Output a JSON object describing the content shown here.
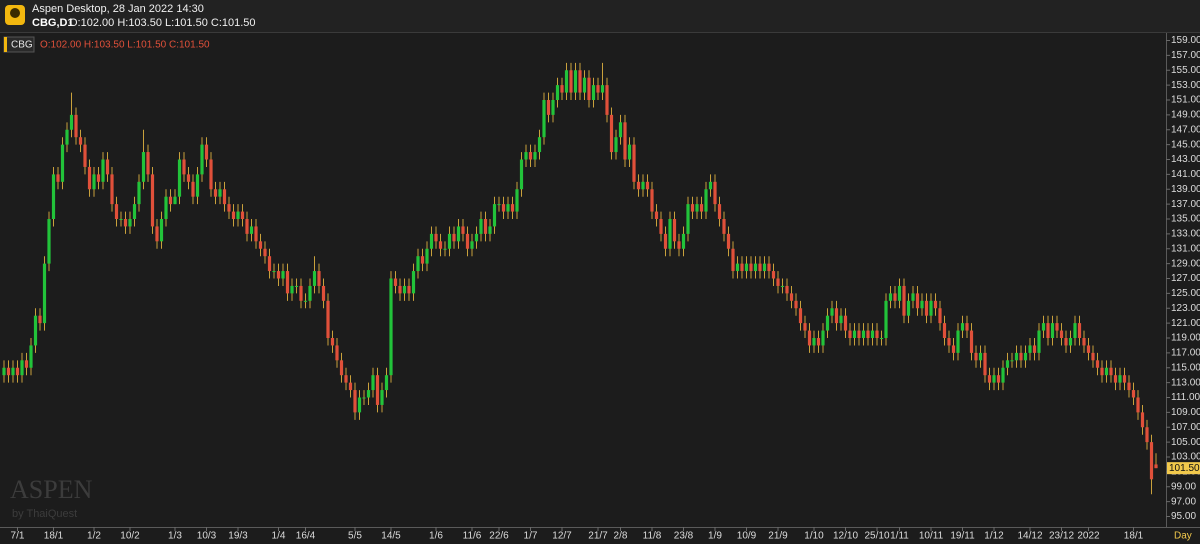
{
  "header": {
    "title": "Aspen Desktop, 28 Jan 2022 14:30",
    "symbol": "CBG,D1",
    "ohlc": "O:102.00 H:103.50 L:101.50 C:101.50"
  },
  "watermark": {
    "brand": "ASPEN",
    "byline": "by ThaiQuest"
  },
  "chart_data": {
    "type": "candlestick",
    "legend": {
      "symbol": "CBG",
      "ohlc": "O:102.00 H:103.50 L:101.50 C:101.50"
    },
    "x_axis_label": "Day",
    "up_color": "#22c33a",
    "down_color": "#e0503a",
    "wick_color": "#c9a13c",
    "grid": false,
    "current_price": {
      "value": 101.5,
      "label": "101.50"
    },
    "ylim": [
      95,
      159
    ],
    "yticks": [
      {
        "value": 95,
        "label": "95.00"
      },
      {
        "value": 97,
        "label": "97.00"
      },
      {
        "value": 99,
        "label": "99.00"
      },
      {
        "value": 101,
        "label": "101.00"
      },
      {
        "value": 103,
        "label": "103.00"
      },
      {
        "value": 105,
        "label": "105.00"
      },
      {
        "value": 107,
        "label": "107.00"
      },
      {
        "value": 109,
        "label": "109.00"
      },
      {
        "value": 111,
        "label": "111.00"
      },
      {
        "value": 113,
        "label": "113.00"
      },
      {
        "value": 115,
        "label": "115.00"
      },
      {
        "value": 117,
        "label": "117.00"
      },
      {
        "value": 119,
        "label": "119.00"
      },
      {
        "value": 121,
        "label": "121.00"
      },
      {
        "value": 123,
        "label": "123.00"
      },
      {
        "value": 125,
        "label": "125.00"
      },
      {
        "value": 127,
        "label": "127.00"
      },
      {
        "value": 129,
        "label": "129.00"
      },
      {
        "value": 131,
        "label": "131.00"
      },
      {
        "value": 133,
        "label": "133.00"
      },
      {
        "value": 135,
        "label": "135.00"
      },
      {
        "value": 137,
        "label": "137.00"
      },
      {
        "value": 139,
        "label": "139.00"
      },
      {
        "value": 141,
        "label": "141.00"
      },
      {
        "value": 143,
        "label": "143.00"
      },
      {
        "value": 145,
        "label": "145.00"
      },
      {
        "value": 147,
        "label": "147.00"
      },
      {
        "value": 149,
        "label": "149.00"
      },
      {
        "value": 151,
        "label": "151.00"
      },
      {
        "value": 153,
        "label": "153.00"
      },
      {
        "value": 155,
        "label": "155.00"
      },
      {
        "value": 157,
        "label": "157.00"
      },
      {
        "value": 159,
        "label": "159.00"
      }
    ],
    "categories": [
      null,
      null,
      null,
      "7/1",
      null,
      null,
      null,
      null,
      null,
      null,
      null,
      "18/1",
      null,
      null,
      null,
      null,
      null,
      null,
      null,
      null,
      "1/2",
      null,
      null,
      null,
      null,
      null,
      null,
      null,
      "10/2",
      null,
      null,
      null,
      null,
      null,
      null,
      null,
      null,
      null,
      "1/3",
      null,
      null,
      null,
      null,
      null,
      null,
      "10/3",
      null,
      null,
      null,
      null,
      null,
      null,
      "19/3",
      null,
      null,
      null,
      null,
      null,
      null,
      null,
      null,
      "1/4",
      null,
      null,
      null,
      null,
      null,
      "16/4",
      null,
      null,
      null,
      null,
      null,
      null,
      null,
      null,
      null,
      null,
      "5/5",
      null,
      null,
      null,
      null,
      null,
      null,
      null,
      "14/5",
      null,
      null,
      null,
      null,
      null,
      null,
      null,
      null,
      null,
      "1/6",
      null,
      null,
      null,
      null,
      null,
      null,
      null,
      "11/6",
      null,
      null,
      null,
      null,
      null,
      "22/6",
      null,
      null,
      null,
      null,
      null,
      null,
      "1/7",
      null,
      null,
      null,
      null,
      null,
      null,
      "12/7",
      null,
      null,
      null,
      null,
      null,
      null,
      null,
      "21/7",
      null,
      null,
      null,
      null,
      "2/8",
      null,
      null,
      null,
      null,
      null,
      null,
      "11/8",
      null,
      null,
      null,
      null,
      null,
      null,
      "23/8",
      null,
      null,
      null,
      null,
      null,
      null,
      "1/9",
      null,
      null,
      null,
      null,
      null,
      null,
      "10/9",
      null,
      null,
      null,
      null,
      null,
      null,
      "21/9",
      null,
      null,
      null,
      null,
      null,
      null,
      null,
      "1/10",
      null,
      null,
      null,
      null,
      null,
      null,
      "12/10",
      null,
      null,
      null,
      null,
      null,
      null,
      "25/10",
      null,
      null,
      null,
      null,
      "1/11",
      null,
      null,
      null,
      null,
      null,
      null,
      "10/11",
      null,
      null,
      null,
      null,
      null,
      null,
      "19/11",
      null,
      null,
      null,
      null,
      null,
      null,
      "1/12",
      null,
      null,
      null,
      null,
      null,
      null,
      null,
      "14/12",
      null,
      null,
      null,
      null,
      null,
      null,
      "23/12",
      null,
      null,
      null,
      null,
      null,
      "2022",
      null,
      null,
      null,
      null,
      null,
      null,
      null,
      null,
      null,
      "18/1",
      null,
      null,
      null,
      null,
      null
    ],
    "open": [
      114,
      115,
      114,
      115,
      114,
      116,
      115,
      118,
      122,
      121,
      129,
      135,
      141,
      140,
      145,
      147,
      149,
      146,
      145,
      142,
      139,
      141,
      140,
      143,
      141,
      137,
      135,
      135,
      134,
      135,
      137,
      140,
      144,
      141,
      134,
      132,
      135,
      138,
      137,
      138,
      143,
      141,
      140,
      138,
      141,
      145,
      143,
      139,
      138,
      139,
      137,
      136,
      135,
      136,
      135,
      133,
      134,
      132,
      131,
      130,
      128,
      128,
      127,
      128,
      125,
      126,
      126,
      124,
      124,
      126,
      128,
      126,
      124,
      119,
      118,
      116,
      114,
      113,
      112,
      109,
      111,
      111,
      112,
      114,
      110,
      112,
      114,
      127,
      126,
      125,
      126,
      125,
      128,
      130,
      129,
      131,
      133,
      132,
      131,
      131,
      133,
      132,
      134,
      133,
      131,
      132,
      133,
      135,
      133,
      134,
      137,
      137,
      136,
      137,
      136,
      139,
      143,
      144,
      143,
      144,
      146,
      151,
      149,
      151,
      153,
      152,
      155,
      152,
      155,
      152,
      154,
      151,
      153,
      152,
      153,
      149,
      144,
      146,
      148,
      143,
      145,
      140,
      139,
      140,
      139,
      136,
      135,
      133,
      131,
      135,
      132,
      131,
      133,
      137,
      136,
      137,
      136,
      139,
      140,
      137,
      135,
      133,
      131,
      128,
      129,
      128,
      129,
      128,
      129,
      128,
      129,
      128,
      127,
      126,
      126,
      125,
      124,
      123,
      121,
      120,
      118,
      119,
      118,
      120,
      122,
      123,
      121,
      122,
      120,
      119,
      120,
      119,
      120,
      119,
      120,
      119,
      119,
      124,
      125,
      124,
      126,
      122,
      124,
      125,
      123,
      124,
      122,
      124,
      123,
      121,
      119,
      118,
      117,
      120,
      121,
      120,
      117,
      116,
      117,
      114,
      113,
      114,
      113,
      115,
      116,
      116,
      117,
      116,
      117,
      118,
      117,
      120,
      121,
      119,
      121,
      120,
      119,
      118,
      119,
      121,
      119,
      118,
      117,
      116,
      115,
      114,
      115,
      114,
      113,
      114,
      113,
      112,
      111,
      109,
      107,
      105,
      102
    ],
    "high": [
      116,
      116,
      116,
      116,
      117,
      117,
      119,
      123,
      123,
      130,
      136,
      142,
      142,
      146,
      148,
      152,
      150,
      147,
      146,
      143,
      142,
      142,
      144,
      144,
      142,
      138,
      136,
      136,
      136,
      138,
      141,
      147,
      145,
      142,
      135,
      136,
      139,
      139,
      139,
      144,
      144,
      142,
      141,
      142,
      146,
      146,
      144,
      140,
      140,
      140,
      138,
      137,
      137,
      137,
      136,
      135,
      135,
      133,
      132,
      131,
      129,
      129,
      129,
      129,
      127,
      127,
      127,
      125,
      127,
      130,
      129,
      127,
      125,
      120,
      119,
      117,
      115,
      114,
      113,
      112,
      112,
      113,
      115,
      115,
      113,
      115,
      128,
      128,
      127,
      127,
      127,
      129,
      131,
      131,
      132,
      134,
      134,
      133,
      132,
      134,
      134,
      135,
      135,
      134,
      133,
      134,
      136,
      136,
      135,
      138,
      138,
      138,
      138,
      138,
      140,
      144,
      145,
      145,
      145,
      147,
      152,
      152,
      152,
      154,
      154,
      156,
      156,
      156,
      156,
      155,
      155,
      154,
      154,
      156,
      154,
      150,
      147,
      149,
      149,
      146,
      146,
      141,
      141,
      141,
      140,
      137,
      136,
      134,
      136,
      136,
      133,
      134,
      138,
      138,
      138,
      138,
      140,
      141,
      141,
      138,
      136,
      134,
      132,
      130,
      130,
      130,
      130,
      130,
      130,
      130,
      130,
      129,
      128,
      127,
      127,
      126,
      125,
      124,
      122,
      121,
      120,
      120,
      121,
      123,
      124,
      124,
      123,
      123,
      121,
      121,
      121,
      121,
      121,
      121,
      121,
      120,
      125,
      126,
      126,
      127,
      127,
      125,
      126,
      126,
      125,
      125,
      125,
      125,
      124,
      122,
      120,
      119,
      121,
      122,
      122,
      121,
      118,
      118,
      118,
      115,
      115,
      115,
      116,
      117,
      117,
      118,
      118,
      118,
      119,
      119,
      121,
      122,
      122,
      122,
      122,
      121,
      120,
      120,
      122,
      122,
      120,
      119,
      118,
      117,
      116,
      116,
      116,
      115,
      115,
      115,
      114,
      113,
      112,
      110,
      108,
      106,
      103.5
    ],
    "low": [
      113,
      113,
      113,
      113,
      113,
      114,
      114,
      117,
      120,
      120,
      128,
      134,
      139,
      139,
      144,
      146,
      145,
      144,
      141,
      138,
      138,
      139,
      139,
      140,
      136,
      134,
      134,
      133,
      133,
      134,
      136,
      139,
      140,
      133,
      131,
      131,
      134,
      136,
      137,
      137,
      140,
      139,
      137,
      137,
      140,
      142,
      138,
      137,
      137,
      136,
      135,
      134,
      134,
      134,
      132,
      132,
      131,
      130,
      129,
      127,
      127,
      126,
      126,
      124,
      124,
      125,
      123,
      123,
      123,
      125,
      125,
      123,
      118,
      117,
      115,
      113,
      112,
      111,
      108,
      108,
      110,
      110,
      111,
      109,
      109,
      111,
      113,
      125,
      124,
      124,
      124,
      124,
      127,
      128,
      128,
      130,
      131,
      130,
      130,
      130,
      131,
      131,
      132,
      130,
      130,
      131,
      132,
      132,
      132,
      133,
      136,
      135,
      135,
      135,
      135,
      138,
      142,
      142,
      142,
      143,
      145,
      148,
      148,
      150,
      151,
      151,
      151,
      151,
      151,
      151,
      150,
      150,
      151,
      151,
      148,
      143,
      143,
      145,
      142,
      142,
      139,
      138,
      138,
      138,
      135,
      134,
      132,
      130,
      130,
      131,
      130,
      130,
      132,
      135,
      135,
      135,
      135,
      138,
      136,
      134,
      132,
      130,
      127,
      127,
      127,
      127,
      127,
      127,
      127,
      127,
      127,
      126,
      125,
      125,
      124,
      123,
      122,
      120,
      119,
      117,
      117,
      117,
      117,
      119,
      121,
      120,
      120,
      119,
      118,
      118,
      118,
      118,
      118,
      118,
      118,
      118,
      118,
      123,
      123,
      123,
      121,
      121,
      123,
      122,
      122,
      121,
      121,
      122,
      120,
      118,
      117,
      116,
      116,
      119,
      119,
      116,
      115,
      115,
      113,
      112,
      112,
      112,
      112,
      114,
      115,
      115,
      115,
      115,
      116,
      116,
      116,
      119,
      118,
      118,
      119,
      118,
      117,
      117,
      118,
      118,
      117,
      116,
      115,
      114,
      113,
      113,
      113,
      112,
      112,
      112,
      111,
      110,
      108,
      106,
      104,
      98,
      101.5
    ],
    "close": [
      115,
      114,
      115,
      114,
      116,
      115,
      118,
      122,
      121,
      129,
      135,
      141,
      140,
      145,
      147,
      149,
      146,
      145,
      142,
      139,
      141,
      140,
      143,
      141,
      137,
      135,
      135,
      134,
      135,
      137,
      140,
      144,
      141,
      134,
      132,
      135,
      138,
      137,
      138,
      143,
      141,
      140,
      138,
      141,
      145,
      143,
      139,
      138,
      139,
      137,
      136,
      135,
      136,
      135,
      133,
      134,
      132,
      131,
      130,
      128,
      128,
      127,
      128,
      125,
      126,
      126,
      124,
      124,
      126,
      128,
      126,
      124,
      119,
      118,
      116,
      114,
      113,
      112,
      109,
      111,
      111,
      112,
      114,
      110,
      112,
      114,
      127,
      126,
      125,
      126,
      125,
      128,
      130,
      129,
      131,
      133,
      132,
      131,
      131,
      133,
      132,
      134,
      133,
      131,
      132,
      133,
      135,
      133,
      134,
      137,
      137,
      136,
      137,
      136,
      139,
      143,
      144,
      143,
      144,
      146,
      151,
      149,
      151,
      153,
      152,
      155,
      152,
      155,
      152,
      154,
      151,
      153,
      152,
      153,
      149,
      144,
      146,
      148,
      143,
      145,
      140,
      139,
      140,
      139,
      136,
      135,
      133,
      131,
      135,
      132,
      131,
      133,
      137,
      136,
      137,
      136,
      139,
      140,
      137,
      135,
      133,
      131,
      128,
      129,
      128,
      129,
      128,
      129,
      128,
      129,
      128,
      127,
      126,
      126,
      125,
      124,
      123,
      121,
      120,
      118,
      119,
      118,
      120,
      122,
      123,
      121,
      122,
      120,
      119,
      120,
      119,
      120,
      119,
      120,
      119,
      119,
      124,
      125,
      124,
      126,
      122,
      124,
      125,
      123,
      124,
      122,
      124,
      123,
      121,
      119,
      118,
      117,
      120,
      121,
      120,
      117,
      116,
      117,
      114,
      113,
      114,
      113,
      115,
      116,
      116,
      117,
      116,
      117,
      118,
      117,
      120,
      121,
      119,
      121,
      120,
      119,
      118,
      119,
      121,
      119,
      118,
      117,
      116,
      115,
      114,
      115,
      114,
      113,
      114,
      113,
      112,
      111,
      109,
      107,
      105,
      100,
      101.5
    ]
  }
}
